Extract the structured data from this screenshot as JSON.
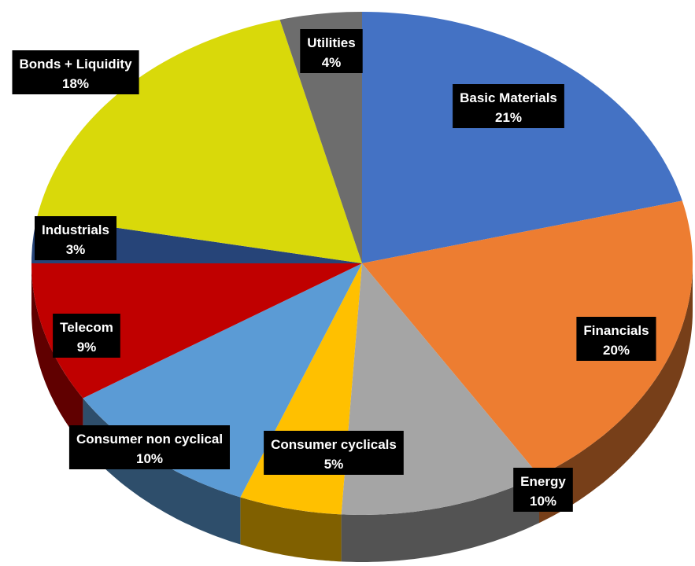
{
  "chart_data": {
    "type": "pie",
    "title": "",
    "slices": [
      {
        "label": "Basic Materials",
        "value": 21,
        "value_label": "21%",
        "color": "#4472C4"
      },
      {
        "label": "Financials",
        "value": 20,
        "value_label": "20%",
        "color": "#ED7D31"
      },
      {
        "label": "Energy",
        "value": 10,
        "value_label": "10%",
        "color": "#A5A5A5"
      },
      {
        "label": "Consumer cyclicals",
        "value": 5,
        "value_label": "5%",
        "color": "#FFC000"
      },
      {
        "label": "Consumer non cyclical",
        "value": 10,
        "value_label": "10%",
        "color": "#5B9BD5"
      },
      {
        "label": "Telecom",
        "value": 9,
        "value_label": "9%",
        "color": "#C00000"
      },
      {
        "label": "Industrials",
        "value": 3,
        "value_label": "3%",
        "color": "#264478"
      },
      {
        "label": "Bonds + Liquidity",
        "value": 18,
        "value_label": "18%",
        "color": "#D9D90A"
      },
      {
        "label": "Utilities",
        "value": 4,
        "value_label": "4%",
        "color": "#6D6D6D"
      }
    ],
    "start_position": "top",
    "direction": "clockwise",
    "style": "3d",
    "legend": "none",
    "data_labels": "black boxes with white text"
  }
}
